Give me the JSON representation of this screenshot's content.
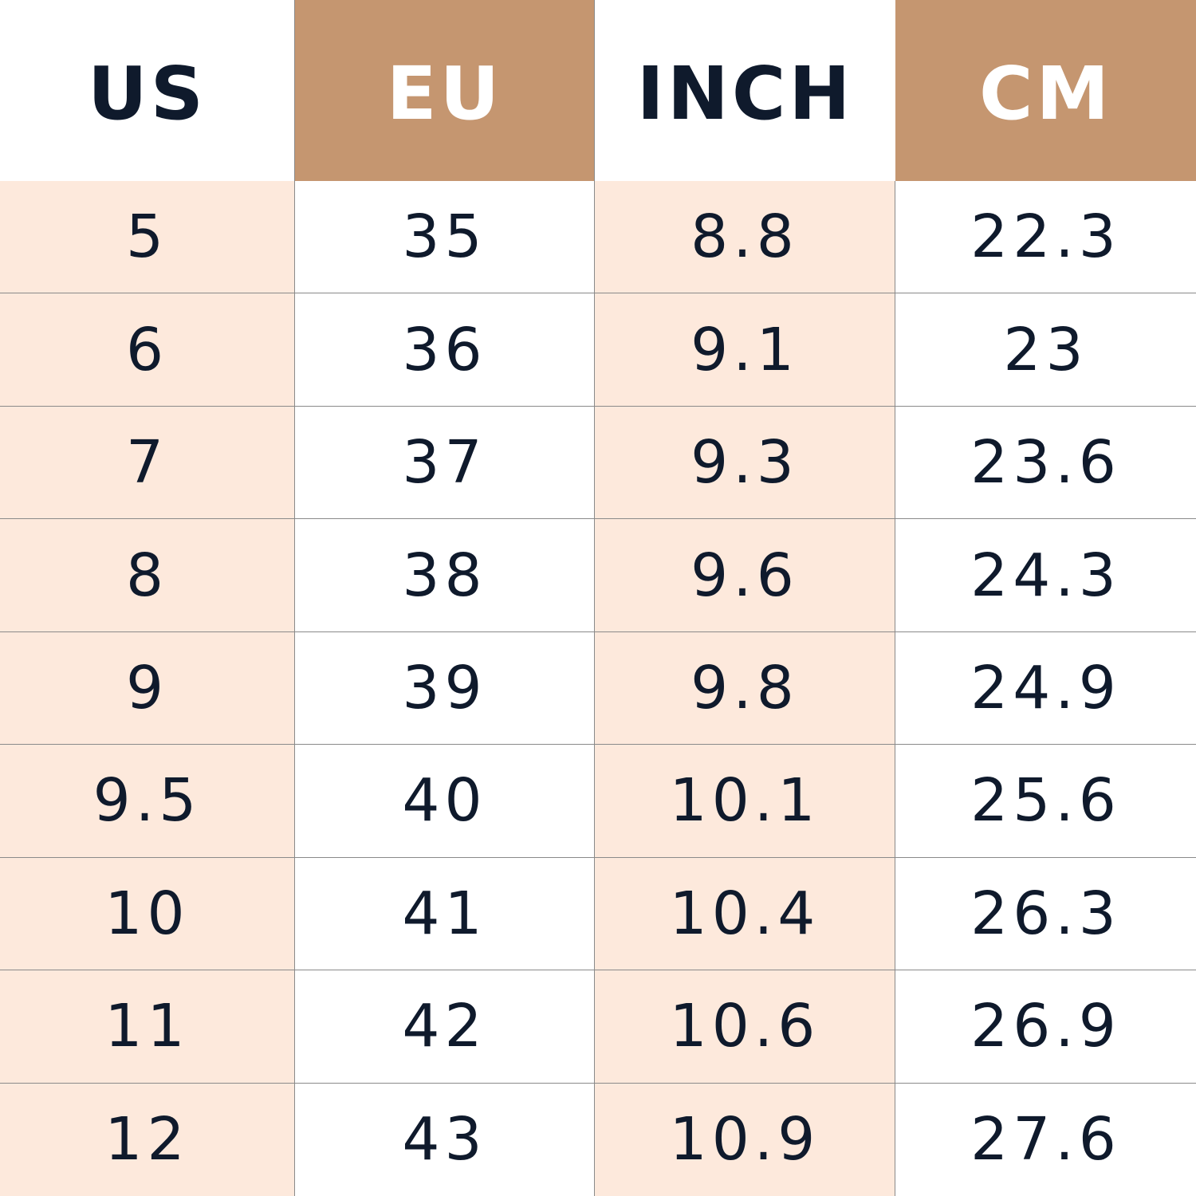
{
  "colors": {
    "header_accent": "#c59670",
    "row_shade": "#fde9dc",
    "text": "#0f1a2c"
  },
  "headers": [
    "US",
    "EU",
    "INCH",
    "CM"
  ],
  "rows": [
    [
      "5",
      "35",
      "8.8",
      "22.3"
    ],
    [
      "6",
      "36",
      "9.1",
      "23"
    ],
    [
      "7",
      "37",
      "9.3",
      "23.6"
    ],
    [
      "8",
      "38",
      "9.6",
      "24.3"
    ],
    [
      "9",
      "39",
      "9.8",
      "24.9"
    ],
    [
      "9.5",
      "40",
      "10.1",
      "25.6"
    ],
    [
      "10",
      "41",
      "10.4",
      "26.3"
    ],
    [
      "11",
      "42",
      "10.6",
      "26.9"
    ],
    [
      "12",
      "43",
      "10.9",
      "27.6"
    ]
  ]
}
